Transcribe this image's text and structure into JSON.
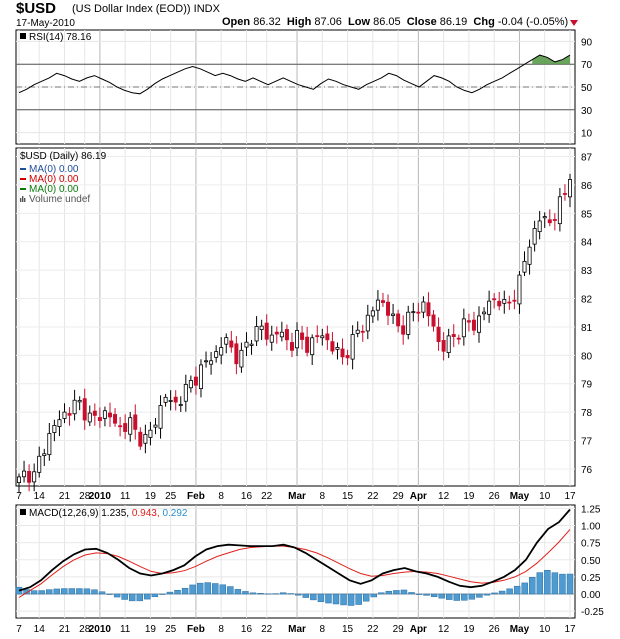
{
  "header": {
    "symbol": "$USD",
    "name": "(US Dollar Index (EOD))",
    "exchange": "INDX",
    "date": "17-May-2010",
    "open_label": "Open",
    "open": "86.32",
    "high_label": "High",
    "high": "87.06",
    "low_label": "Low",
    "low": "86.05",
    "close_label": "Close",
    "close": "86.19",
    "chg_label": "Chg",
    "chg": "-0.04 (-0.05%)"
  },
  "chart_data": [
    {
      "type": "line",
      "panel": "rsi",
      "label": "RSI(14) 78.16",
      "ylim": [
        0,
        100
      ],
      "yticks": [
        10,
        30,
        50,
        70,
        90
      ],
      "ref_lines": [
        30,
        50,
        70
      ],
      "values": [
        45,
        48,
        52,
        55,
        58,
        62,
        60,
        57,
        55,
        58,
        60,
        57,
        54,
        50,
        47,
        45,
        44,
        48,
        53,
        57,
        60,
        63,
        66,
        68,
        66,
        63,
        60,
        62,
        60,
        57,
        55,
        58,
        55,
        52,
        55,
        58,
        55,
        52,
        50,
        48,
        53,
        57,
        55,
        52,
        50,
        48,
        52,
        55,
        58,
        62,
        60,
        56,
        53,
        50,
        55,
        60,
        58,
        55,
        50,
        47,
        45,
        48,
        52,
        55,
        58,
        62,
        66,
        70,
        74,
        78,
        76,
        72,
        74,
        78
      ]
    },
    {
      "type": "candlestick",
      "panel": "price",
      "title": "$USD (Daily) 86.19",
      "legend": [
        {
          "name": "MA(0) 0.00",
          "color": "#1f4e9c"
        },
        {
          "name": "MA(0) 0.00",
          "color": "#d00000"
        },
        {
          "name": "MA(0) 0.00",
          "color": "#0a7a0a"
        },
        {
          "name": "Volume undef",
          "color": "#555555"
        }
      ],
      "ylim": [
        75.4,
        87.3
      ],
      "yticks": [
        76,
        77,
        78,
        79,
        80,
        81,
        82,
        83,
        84,
        85,
        86,
        87
      ],
      "closes": [
        75.6,
        75.9,
        75.7,
        76.5,
        77.1,
        77.6,
        77.9,
        78.1,
        78.4,
        78.0,
        77.7,
        77.9,
        78.0,
        77.6,
        77.4,
        77.7,
        77.2,
        77.0,
        77.3,
        78.0,
        78.6,
        78.2,
        78.5,
        78.9,
        79.2,
        79.6,
        79.9,
        80.1,
        80.6,
        80.2,
        79.8,
        80.4,
        80.8,
        81.0,
        80.5,
        80.9,
        80.6,
        80.4,
        80.7,
        80.3,
        80.5,
        80.8,
        80.5,
        80.2,
        79.9,
        80.3,
        80.8,
        81.1,
        81.5,
        82.0,
        81.7,
        81.2,
        80.9,
        81.3,
        81.6,
        81.8,
        81.3,
        80.5,
        80.3,
        80.6,
        80.9,
        81.2,
        81.0,
        81.5,
        81.8,
        82.1,
        81.7,
        81.9,
        82.5,
        83.5,
        84.3,
        84.9,
        84.6,
        85.0,
        85.5,
        86.19
      ],
      "x_labels": [
        {
          "label": "7",
          "index": 0,
          "bold": false
        },
        {
          "label": "14",
          "index": 4,
          "bold": false
        },
        {
          "label": "21",
          "index": 9,
          "bold": false
        },
        {
          "label": "28",
          "index": 13,
          "bold": false
        },
        {
          "label": "2010",
          "index": 16,
          "bold": true
        },
        {
          "label": "11",
          "index": 21,
          "bold": false
        },
        {
          "label": "19",
          "index": 26,
          "bold": false
        },
        {
          "label": "25",
          "index": 30,
          "bold": false
        },
        {
          "label": "Feb",
          "index": 35,
          "bold": true
        },
        {
          "label": "8",
          "index": 40,
          "bold": false
        },
        {
          "label": "16",
          "index": 45,
          "bold": false
        },
        {
          "label": "22",
          "index": 49,
          "bold": false
        },
        {
          "label": "Mar",
          "index": 55,
          "bold": true
        },
        {
          "label": "8",
          "index": 60,
          "bold": false
        },
        {
          "label": "15",
          "index": 65,
          "bold": false
        },
        {
          "label": "22",
          "index": 70,
          "bold": false
        },
        {
          "label": "29",
          "index": 75,
          "bold": false
        },
        {
          "label": "Apr",
          "index": 79,
          "bold": true
        },
        {
          "label": "12",
          "index": 84,
          "bold": false
        },
        {
          "label": "19",
          "index": 89,
          "bold": false
        },
        {
          "label": "26",
          "index": 94,
          "bold": false
        },
        {
          "label": "May",
          "index": 99,
          "bold": true
        },
        {
          "label": "10",
          "index": 104,
          "bold": false
        },
        {
          "label": "17",
          "index": 109,
          "bold": false
        }
      ],
      "x_count": 110
    },
    {
      "type": "line",
      "panel": "macd",
      "label_prefix": "MACD(12,26,9)",
      "macd_value": "1.235",
      "signal_value": "0.943",
      "hist_value": "0.292",
      "ylim": [
        -0.35,
        1.3
      ],
      "yticks": [
        -0.25,
        0.0,
        0.25,
        0.5,
        0.75,
        1.0,
        1.25
      ],
      "ytick_labels": [
        "-0.25",
        "0.00",
        "0.25",
        "0.50",
        "0.75",
        "1.00",
        "1.25"
      ],
      "macd": [
        0.05,
        0.1,
        0.2,
        0.35,
        0.48,
        0.58,
        0.65,
        0.66,
        0.6,
        0.5,
        0.38,
        0.3,
        0.27,
        0.3,
        0.35,
        0.42,
        0.55,
        0.65,
        0.7,
        0.72,
        0.71,
        0.7,
        0.7,
        0.7,
        0.72,
        0.68,
        0.6,
        0.5,
        0.4,
        0.3,
        0.2,
        0.15,
        0.2,
        0.3,
        0.35,
        0.38,
        0.33,
        0.3,
        0.25,
        0.18,
        0.12,
        0.1,
        0.12,
        0.18,
        0.25,
        0.35,
        0.5,
        0.75,
        0.95,
        1.05,
        1.235
      ],
      "signal": [
        -0.05,
        0.05,
        0.15,
        0.28,
        0.4,
        0.5,
        0.57,
        0.6,
        0.59,
        0.55,
        0.48,
        0.4,
        0.33,
        0.3,
        0.31,
        0.34,
        0.4,
        0.48,
        0.55,
        0.6,
        0.65,
        0.68,
        0.69,
        0.7,
        0.7,
        0.68,
        0.65,
        0.6,
        0.53,
        0.45,
        0.37,
        0.3,
        0.26,
        0.27,
        0.3,
        0.32,
        0.33,
        0.32,
        0.3,
        0.26,
        0.22,
        0.18,
        0.16,
        0.17,
        0.2,
        0.25,
        0.33,
        0.45,
        0.6,
        0.76,
        0.943
      ],
      "hist_count": 74
    }
  ]
}
